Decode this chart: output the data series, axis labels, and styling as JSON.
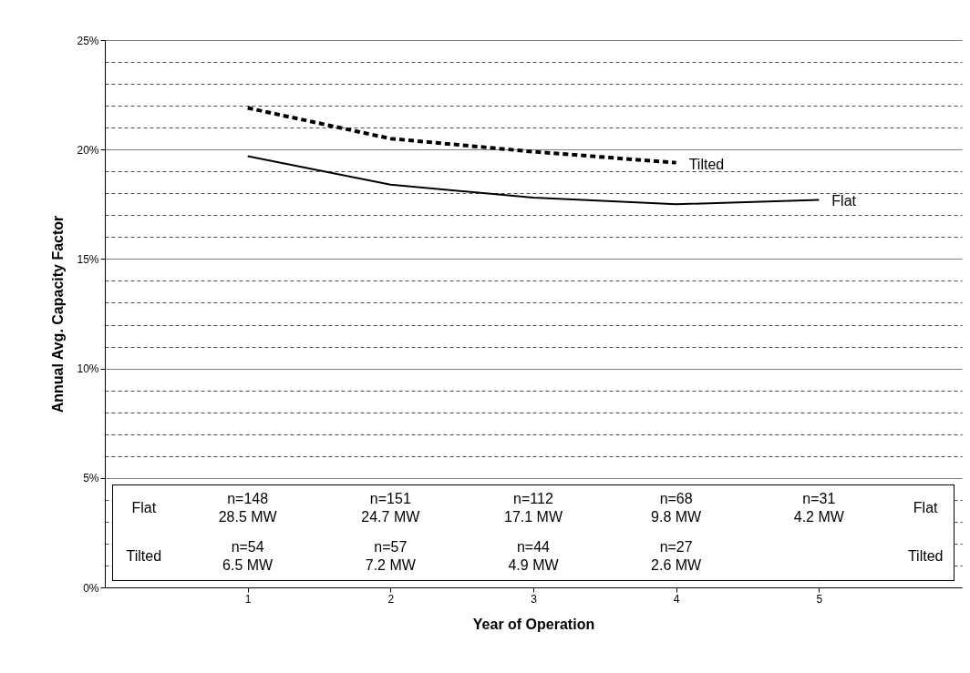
{
  "chart_data": {
    "type": "line",
    "xlabel": "Year of Operation",
    "ylabel": "Annual Avg. Capacity Factor",
    "x": [
      1,
      2,
      3,
      4,
      5
    ],
    "xlim": [
      0,
      6
    ],
    "xticks": [
      1,
      2,
      3,
      4,
      5
    ],
    "ylim": [
      0,
      25
    ],
    "yticks": [
      {
        "value": 0,
        "label": "0%"
      },
      {
        "value": 1,
        "label": null
      },
      {
        "value": 2,
        "label": null
      },
      {
        "value": 3,
        "label": null
      },
      {
        "value": 4,
        "label": null
      },
      {
        "value": 5,
        "label": "5%"
      },
      {
        "value": 6,
        "label": null
      },
      {
        "value": 7,
        "label": null
      },
      {
        "value": 8,
        "label": null
      },
      {
        "value": 9,
        "label": null
      },
      {
        "value": 10,
        "label": "10%"
      },
      {
        "value": 11,
        "label": null
      },
      {
        "value": 12,
        "label": null
      },
      {
        "value": 13,
        "label": null
      },
      {
        "value": 14,
        "label": null
      },
      {
        "value": 15,
        "label": "15%"
      },
      {
        "value": 16,
        "label": null
      },
      {
        "value": 17,
        "label": null
      },
      {
        "value": 18,
        "label": null
      },
      {
        "value": 19,
        "label": null
      },
      {
        "value": 20,
        "label": "20%"
      },
      {
        "value": 21,
        "label": null
      },
      {
        "value": 22,
        "label": null
      },
      {
        "value": 23,
        "label": null
      },
      {
        "value": 24,
        "label": null
      },
      {
        "value": 25,
        "label": "25%"
      }
    ],
    "grid": "y",
    "legend": false,
    "marker": "none",
    "series": [
      {
        "name": "Tilted",
        "color": "#000000",
        "line_style": "dashed",
        "values": [
          21.9,
          20.5,
          19.9,
          19.4,
          null
        ]
      },
      {
        "name": "Flat",
        "color": "#000000",
        "line_style": "solid",
        "values": [
          19.7,
          18.4,
          17.8,
          17.5,
          17.7
        ]
      }
    ],
    "annotations": [
      "Flat",
      "n=148\n28.5 MW",
      "n=151\n24.7 MW",
      "n=112\n17.1 MW",
      "n=68\n9.8 MW",
      "n=31\n4.2 MW",
      "Flat",
      "Tilted",
      "n=54\n6.5 MW",
      "n=57\n7.2 MW",
      "n=44\n4.9 MW",
      "n=27\n2.6 MW",
      "Tilted"
    ]
  }
}
